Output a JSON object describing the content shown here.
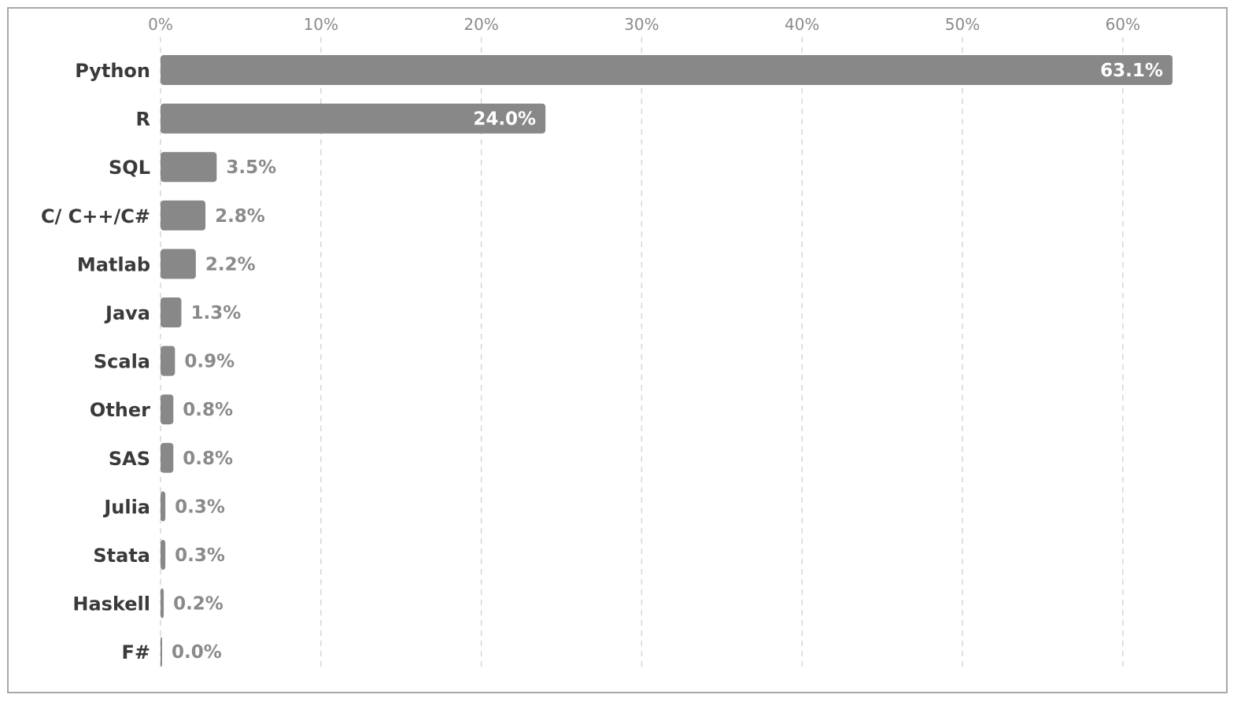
{
  "chart_data": {
    "type": "bar",
    "orientation": "horizontal",
    "categories": [
      "Python",
      "R",
      "SQL",
      "C/ C++/C#",
      "Matlab",
      "Java",
      "Scala",
      "Other",
      "SAS",
      "Julia",
      "Stata",
      "Haskell",
      "F#"
    ],
    "values": [
      63.1,
      24.0,
      3.5,
      2.8,
      2.2,
      1.3,
      0.9,
      0.8,
      0.8,
      0.3,
      0.3,
      0.2,
      0.0
    ],
    "value_labels": [
      "63.1%",
      "24.0%",
      "3.5%",
      "2.8%",
      "2.2%",
      "1.3%",
      "0.9%",
      "0.8%",
      "0.8%",
      "0.3%",
      "0.3%",
      "0.2%",
      "0.0%"
    ],
    "x_ticks": [
      0,
      10,
      20,
      30,
      40,
      50,
      60
    ],
    "x_tick_labels": [
      "0%",
      "10%",
      "20%",
      "30%",
      "40%",
      "50%",
      "60%"
    ],
    "xlim": [
      0,
      65
    ],
    "x_axis_position": "top",
    "grid": "vertical dashed",
    "title": "",
    "xlabel": "",
    "ylabel": "",
    "colors": {
      "bar": "#888888",
      "label_inside": "#ffffff",
      "label_outside": "#8a8a8a",
      "grid": "#d6d6d6"
    }
  }
}
